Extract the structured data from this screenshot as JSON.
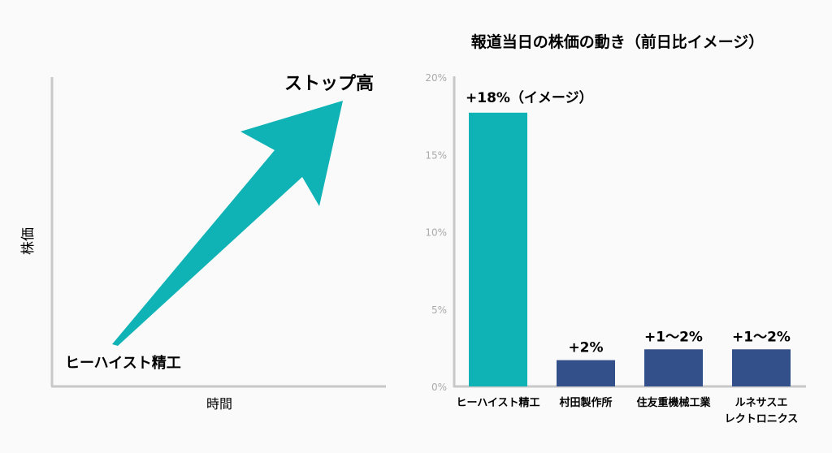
{
  "left_panel": {
    "ylabel": "株価",
    "xlabel": "時間",
    "start_label": "ヒーハイスト精工",
    "end_label": "ストップ高"
  },
  "chart_data": {
    "type": "bar",
    "title": "報道当日の株価の動き（前日比イメージ）",
    "categories": [
      [
        "ヒーハイスト精工"
      ],
      [
        "村田製作所"
      ],
      [
        "住友重機械工業"
      ],
      [
        "ルネサスエ",
        "レクトロニクス"
      ]
    ],
    "values": [
      17.7,
      1.7,
      2.4,
      2.4
    ],
    "data_labels": [
      "+18%（イメージ）",
      "+2%",
      "+1〜2%",
      "+1〜2%"
    ],
    "yticks": [
      "0%",
      "5%",
      "10%",
      "15%",
      "20%"
    ],
    "ytick_values": [
      0,
      5,
      10,
      15,
      20
    ],
    "ylim": [
      0,
      20
    ],
    "xlabel": "",
    "ylabel": "",
    "grid": false,
    "colors": [
      "#0fb3b5",
      "#34508a",
      "#34508a",
      "#34508a"
    ]
  },
  "colors": {
    "accent": "#0fb3b5",
    "bar": "#34508a",
    "axis": "#c8c8c8"
  }
}
